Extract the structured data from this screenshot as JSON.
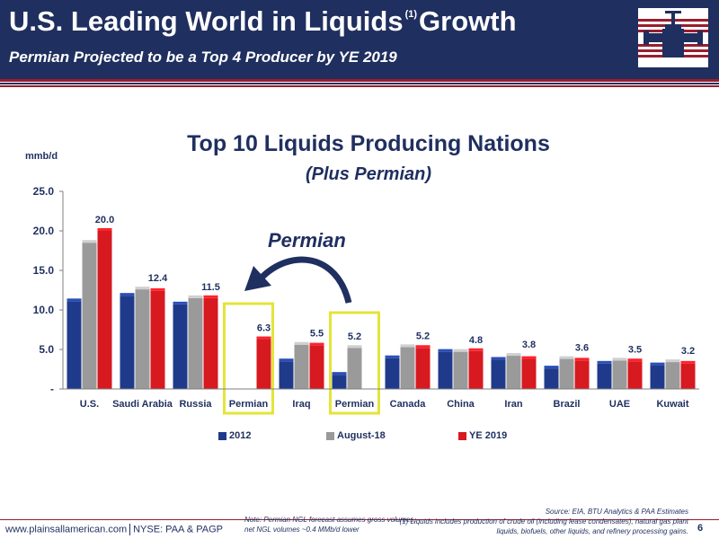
{
  "header": {
    "title_main": "U.S. Leading World in Liquids",
    "title_sup": "(1)",
    "title_end": "Growth",
    "subtitle": "Permian Projected to be a Top 4 Producer by YE 2019"
  },
  "footer": {
    "website": "www.plainsallamerican.com",
    "ticker": "NYSE: PAA & PAGP",
    "note": "Note: Permian NGL forecast assumes gross volumes, net NGL volumes ~0.4 MMb/d lower",
    "source": "Source: EIA, BTU Analytics & PAA Estimates",
    "footnote": "(1) Liquids includes production of crude oil (including lease condensates), natural gas plant liquids, biofuels, other liquids, and refinery processing gains.",
    "page_number": "6"
  },
  "colors": {
    "navy": "#1f2f5f",
    "series_2012": "#1f3a8a",
    "series_aug18": "#9a9a9a",
    "series_ye2019": "#d71920",
    "highlight": "#e4e43a",
    "accent_red": "#9a1d2e"
  },
  "annotation": {
    "label": "Permian"
  },
  "chart_data": {
    "type": "bar",
    "title": "Top 10 Liquids Producing Nations",
    "subtitle": "(Plus Permian)",
    "ylabel": "mmb/d",
    "ylim": [
      0,
      25
    ],
    "yticks": [
      0,
      5,
      10,
      15,
      20,
      25
    ],
    "ytick_labels": [
      "-",
      "5.0",
      "10.0",
      "15.0",
      "20.0",
      "25.0"
    ],
    "categories": [
      "U.S.",
      "Saudi Arabia",
      "Russia",
      "Permian",
      "Iraq",
      "Permian",
      "Canada",
      "China",
      "Iran",
      "Brazil",
      "UAE",
      "Kuwait"
    ],
    "series": [
      {
        "name": "2012",
        "values": [
          11.1,
          11.8,
          10.7,
          null,
          3.5,
          null,
          3.9,
          4.7,
          3.7,
          2.6,
          3.2,
          3.0
        ]
      },
      {
        "name": "August-18",
        "values": [
          18.5,
          12.6,
          11.5,
          null,
          5.6,
          5.2,
          5.3,
          4.7,
          4.2,
          3.8,
          3.6,
          3.4
        ]
      },
      {
        "name": "YE 2019",
        "values": [
          20.0,
          12.4,
          11.5,
          6.3,
          5.5,
          null,
          5.2,
          4.8,
          3.8,
          3.6,
          3.5,
          3.2
        ]
      }
    ],
    "extra_bars": [
      {
        "category_index": 5,
        "series_index": 0,
        "value": 1.8
      }
    ],
    "data_labels": [
      {
        "category_index": 0,
        "text": "20.0"
      },
      {
        "category_index": 1,
        "text": "12.4"
      },
      {
        "category_index": 2,
        "text": "11.5"
      },
      {
        "category_index": 3,
        "text": "6.3"
      },
      {
        "category_index": 4,
        "text": "5.5"
      },
      {
        "category_index": 5,
        "text": "5.2"
      },
      {
        "category_index": 6,
        "text": "5.2"
      },
      {
        "category_index": 7,
        "text": "4.8"
      },
      {
        "category_index": 8,
        "text": "3.8"
      },
      {
        "category_index": 9,
        "text": "3.6"
      },
      {
        "category_index": 10,
        "text": "3.5"
      },
      {
        "category_index": 11,
        "text": "3.2"
      }
    ],
    "highlighted_categories": [
      3,
      5
    ],
    "legend": [
      "2012",
      "August-18",
      "YE 2019"
    ],
    "legend_position": "bottom",
    "grid": false
  }
}
